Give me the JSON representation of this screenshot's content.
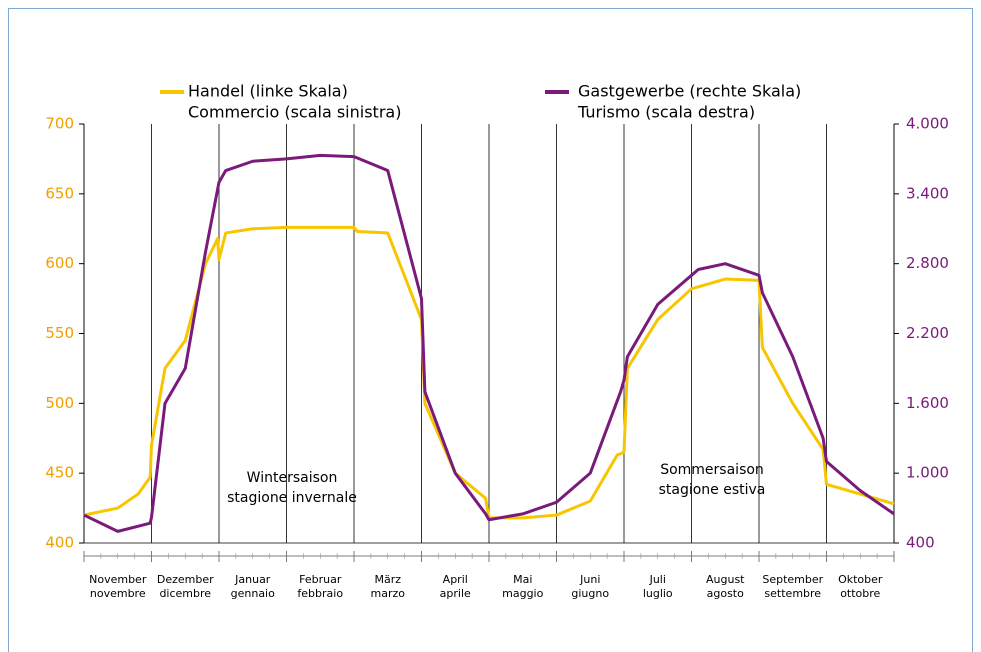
{
  "chart_data": {
    "type": "line",
    "categories": [
      [
        "November",
        "novembre"
      ],
      [
        "Dezember",
        "dicembre"
      ],
      [
        "Januar",
        "gennaio"
      ],
      [
        "Februar",
        "febbraio"
      ],
      [
        "März",
        "marzo"
      ],
      [
        "April",
        "aprile"
      ],
      [
        "Mai",
        "maggio"
      ],
      [
        "Juni",
        "giugno"
      ],
      [
        "Juli",
        "luglio"
      ],
      [
        "August",
        "agosto"
      ],
      [
        "September",
        "settembre"
      ],
      [
        "Oktober",
        "ottobre"
      ]
    ],
    "xlim": [
      0,
      12
    ],
    "ylim": [
      400,
      700
    ],
    "yticks": [
      400,
      450,
      500,
      550,
      600,
      650,
      700
    ],
    "y2lim": [
      400,
      4000
    ],
    "y2ticks": [
      400,
      {
        "value": 1000,
        "label": "1.000"
      },
      {
        "value": 1600,
        "label": "1.600"
      },
      {
        "value": 2200,
        "label": "2.200"
      },
      {
        "value": 2800,
        "label": "2.800"
      },
      {
        "value": 3400,
        "label": "3.400"
      },
      {
        "value": 4000,
        "label": "4.000"
      }
    ],
    "series": [
      {
        "name": [
          "Handel (linke Skala)",
          "Commercio (scala sinistra)"
        ],
        "color": "#f7c600",
        "axis": "y",
        "x": [
          0,
          0.5,
          0.8,
          0.98,
          1.0,
          1.2,
          1.5,
          1.8,
          1.98,
          2.0,
          2.1,
          2.5,
          3,
          4,
          4.05,
          4.5,
          5,
          5.05,
          5.5,
          5.95,
          6.0,
          6.5,
          7,
          7.5,
          7.9,
          8.0,
          8.05,
          8.5,
          9,
          9.5,
          10,
          10.05,
          10.5,
          10.95,
          11,
          11.5,
          12
        ],
        "values": [
          420,
          425,
          435,
          447,
          470,
          525,
          545,
          600,
          618,
          603,
          622,
          625,
          626,
          626,
          623,
          622,
          560,
          500,
          450,
          432,
          418,
          418,
          420,
          430,
          463,
          465,
          525,
          560,
          582,
          589,
          588,
          540,
          500,
          467,
          442,
          435,
          428
        ]
      },
      {
        "name": [
          "Gastgewerbe (rechte Skala)",
          "Turismo (scala destra)"
        ],
        "color": "#7a1a7a",
        "axis": "y2",
        "x": [
          0,
          0.5,
          0.98,
          1.0,
          1.2,
          1.5,
          1.8,
          2.0,
          2.1,
          2.5,
          3,
          3.5,
          4,
          4.5,
          5,
          5.05,
          5.5,
          5.95,
          6.0,
          6.5,
          7,
          7.5,
          7.95,
          8.0,
          8.05,
          8.5,
          9,
          9.1,
          9.5,
          10,
          10.05,
          10.5,
          10.95,
          11,
          11.5,
          12
        ],
        "values": [
          640,
          500,
          570,
          620,
          1600,
          1900,
          2900,
          3500,
          3600,
          3680,
          3700,
          3730,
          3720,
          3600,
          2500,
          1700,
          1000,
          650,
          600,
          650,
          750,
          1000,
          1700,
          1800,
          2000,
          2450,
          2700,
          2750,
          2800,
          2700,
          2550,
          2000,
          1300,
          1100,
          850,
          650
        ]
      }
    ],
    "annotations": [
      [
        "Wintersaison",
        "stagione invernale"
      ],
      [
        "Sommersaison",
        "stagione estiva"
      ]
    ],
    "left_axis_color": "#f0a000",
    "right_axis_color": "#7a1a7a"
  }
}
